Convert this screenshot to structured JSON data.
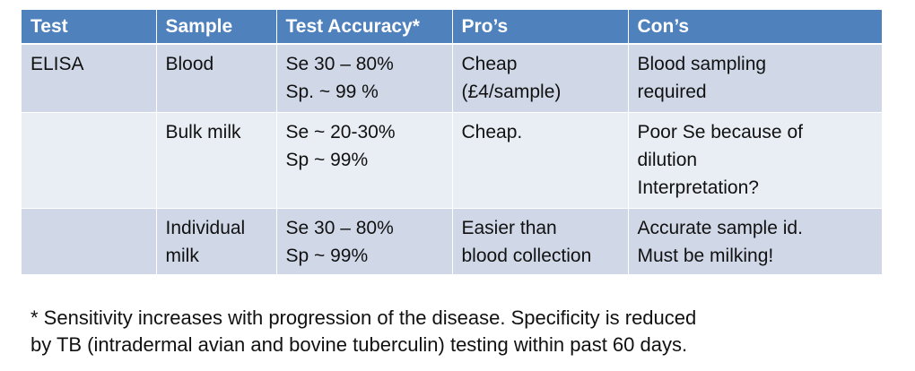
{
  "table": {
    "headers": [
      "Test",
      "Sample",
      "Test Accuracy*",
      "Pro’s",
      "Con’s"
    ],
    "rows": [
      {
        "test": [
          "ELISA"
        ],
        "sample": [
          "Blood"
        ],
        "accuracy": [
          "Se 30 – 80%",
          "Sp. ~ 99 %"
        ],
        "pros": [
          "Cheap",
          "(£4/sample)"
        ],
        "cons": [
          "Blood sampling",
          "required"
        ]
      },
      {
        "test": [],
        "sample": [
          "Bulk milk"
        ],
        "accuracy": [
          "Se ~ 20-30%",
          "Sp ~ 99%"
        ],
        "pros": [
          "Cheap."
        ],
        "cons": [
          "Poor Se because of",
          "dilution",
          "Interpretation?"
        ]
      },
      {
        "test": [],
        "sample": [
          "Individual",
          "milk"
        ],
        "accuracy": [
          "Se 30 – 80%",
          "Sp ~ 99%"
        ],
        "pros": [
          "Easier than",
          "blood collection"
        ],
        "cons": [
          "Accurate sample id.",
          "Must be milking!"
        ]
      }
    ]
  },
  "footnote": [
    "* Sensitivity increases with progression of the disease. Specificity is reduced",
    "by TB (intradermal avian and bovine tuberculin) testing within past 60 days."
  ],
  "colors": {
    "header_bg": "#4f81bd",
    "row_light": "#e9edf4",
    "row_dark": "#d0d8e8"
  }
}
